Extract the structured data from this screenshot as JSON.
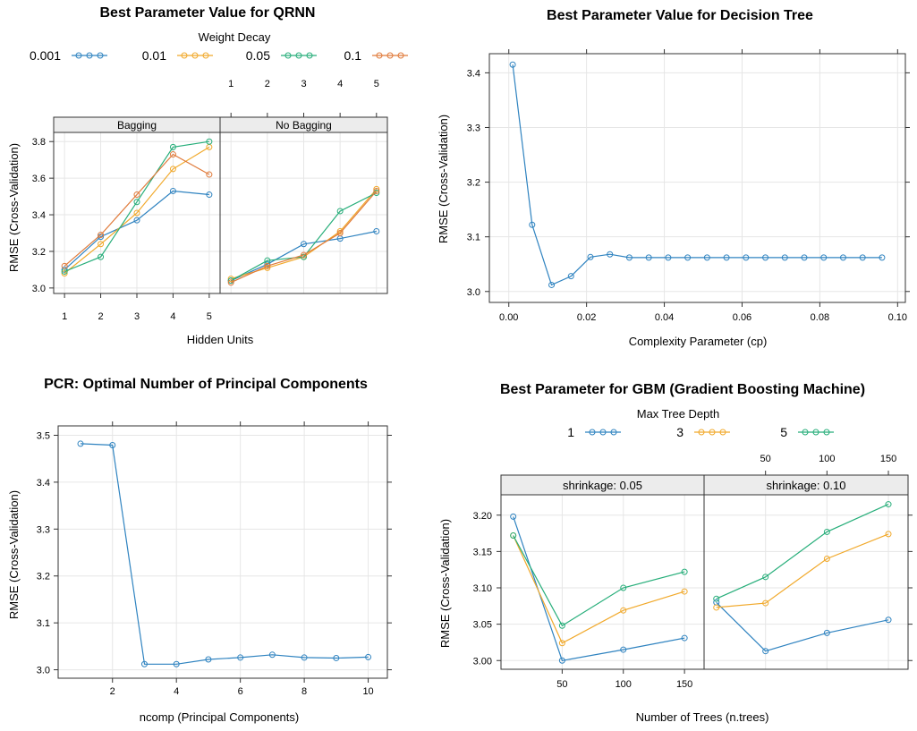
{
  "colors": {
    "blue": "#2f83c0",
    "orange": "#f1a92b",
    "green": "#27ae7a",
    "red": "#e07a3a",
    "strip": "#ececec",
    "grid": "#e6e6e6"
  },
  "chart_data": [
    {
      "id": "qrnn",
      "type": "line",
      "title": "Best Parameter Value for QRNN",
      "xlabel": "Hidden Units",
      "ylabel": "RMSE (Cross-Validation)",
      "legend_title": "Weight Decay",
      "legend_position": "top",
      "panels": [
        "Bagging",
        "No Bagging"
      ],
      "x": [
        1,
        2,
        3,
        4,
        5
      ],
      "xticks": [
        "1",
        "2",
        "3",
        "4",
        "5"
      ],
      "ylim": [
        2.97,
        3.85
      ],
      "yticks": [
        "3.0",
        "3.2",
        "3.4",
        "3.6",
        "3.8"
      ],
      "series": [
        {
          "name": "0.001",
          "color": "#2f83c0",
          "values": [
            [
              3.1,
              3.28,
              3.37,
              3.53,
              3.51
            ],
            [
              3.04,
              3.13,
              3.24,
              3.27,
              3.31
            ]
          ]
        },
        {
          "name": "0.01",
          "color": "#f1a92b",
          "values": [
            [
              3.08,
              3.24,
              3.41,
              3.65,
              3.77
            ],
            [
              3.05,
              3.11,
              3.17,
              3.31,
              3.54
            ]
          ]
        },
        {
          "name": "0.05",
          "color": "#27ae7a",
          "values": [
            [
              3.09,
              3.17,
              3.47,
              3.77,
              3.8
            ],
            [
              3.04,
              3.15,
              3.17,
              3.42,
              3.52
            ]
          ]
        },
        {
          "name": "0.1",
          "color": "#e07a3a",
          "values": [
            [
              3.12,
              3.29,
              3.51,
              3.73,
              3.62
            ],
            [
              3.03,
              3.12,
              3.18,
              3.3,
              3.53
            ]
          ]
        }
      ]
    },
    {
      "id": "dtree",
      "type": "line",
      "title": "Best Parameter Value for Decision Tree",
      "xlabel": "Complexity Parameter (cp)",
      "ylabel": "RMSE (Cross-Validation)",
      "x": [
        0.001,
        0.006,
        0.011,
        0.016,
        0.021,
        0.026,
        0.031,
        0.036,
        0.041,
        0.046,
        0.051,
        0.056,
        0.061,
        0.066,
        0.071,
        0.076,
        0.081,
        0.086,
        0.091,
        0.096
      ],
      "values": [
        3.415,
        3.122,
        3.012,
        3.028,
        3.063,
        3.068,
        3.062,
        3.062,
        3.062,
        3.062,
        3.062,
        3.062,
        3.062,
        3.062,
        3.062,
        3.062,
        3.062,
        3.062,
        3.062,
        3.062
      ],
      "xlim": [
        -0.005,
        0.102
      ],
      "xticks": [
        "0.00",
        "0.02",
        "0.04",
        "0.06",
        "0.08",
        "0.10"
      ],
      "ylim": [
        2.98,
        3.435
      ],
      "yticks": [
        "3.0",
        "3.1",
        "3.2",
        "3.3",
        "3.4"
      ]
    },
    {
      "id": "pcr",
      "type": "line",
      "title": "PCR: Optimal Number of Principal Components",
      "xlabel": "ncomp (Principal Components)",
      "ylabel": "RMSE (Cross-Validation)",
      "x": [
        1,
        2,
        3,
        4,
        5,
        6,
        7,
        8,
        9,
        10
      ],
      "values": [
        3.482,
        3.479,
        3.012,
        3.012,
        3.022,
        3.026,
        3.032,
        3.026,
        3.025,
        3.027
      ],
      "xlim": [
        0.3,
        10.6
      ],
      "xticks": [
        "2",
        "4",
        "6",
        "8",
        "10"
      ],
      "ylim": [
        2.982,
        3.52
      ],
      "yticks": [
        "3.0",
        "3.1",
        "3.2",
        "3.3",
        "3.4",
        "3.5"
      ]
    },
    {
      "id": "gbm",
      "type": "line",
      "title": "Best Parameter for GBM (Gradient Boosting Machine)",
      "xlabel": "Number of Trees (n.trees)",
      "ylabel": "RMSE (Cross-Validation)",
      "legend_title": "Max Tree Depth",
      "legend_position": "top",
      "panels": [
        "shrinkage: 0.05",
        "shrinkage: 0.10"
      ],
      "x": [
        10,
        50,
        100,
        150
      ],
      "xticks": [
        "50",
        "100",
        "150"
      ],
      "ylim": [
        2.988,
        3.228
      ],
      "yticks": [
        "3.00",
        "3.05",
        "3.10",
        "3.15",
        "3.20"
      ],
      "series": [
        {
          "name": "1",
          "color": "#2f83c0",
          "values": [
            [
              3.198,
              3.0,
              3.015,
              3.031
            ],
            [
              3.08,
              3.013,
              3.038,
              3.056
            ]
          ]
        },
        {
          "name": "3",
          "color": "#f1a92b",
          "values": [
            [
              3.172,
              3.024,
              3.069,
              3.095
            ],
            [
              3.073,
              3.079,
              3.14,
              3.174
            ]
          ]
        },
        {
          "name": "5",
          "color": "#27ae7a",
          "values": [
            [
              3.172,
              3.048,
              3.1,
              3.122
            ],
            [
              3.085,
              3.115,
              3.177,
              3.215
            ]
          ]
        }
      ]
    }
  ]
}
